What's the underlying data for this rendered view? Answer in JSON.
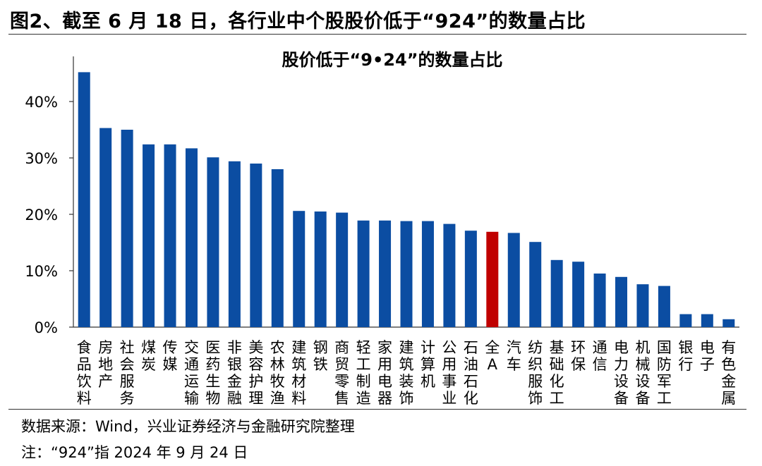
{
  "figure": {
    "title": "图2、截至 6 月 18 日，各行业中个股股价低于“924”的数量占比",
    "source": "数据来源：Wind，兴业证券经济与金融研究院整理",
    "note": "注：“924”指 2024 年 9 月 24 日"
  },
  "chart_data": {
    "type": "bar",
    "title": "股价低于“9•24”的数量占比",
    "xlabel": "",
    "ylabel": "",
    "ylim": [
      0,
      0.48
    ],
    "yticks": [
      0,
      0.1,
      0.2,
      0.3,
      0.4
    ],
    "ytick_labels": [
      "0%",
      "10%",
      "20%",
      "30%",
      "40%"
    ],
    "grid": false,
    "legend": "none",
    "bar_color": "#0B4DA2",
    "highlight_color": "#C00000",
    "highlight_category": "全A",
    "categories": [
      "食品饮料",
      "房地产",
      "社会服务",
      "煤炭",
      "传媒",
      "交通运输",
      "医药生物",
      "非银金融",
      "美容护理",
      "农林牧渔",
      "建筑材料",
      "钢铁",
      "商贸零售",
      "轻工制造",
      "家用电器",
      "建筑装饰",
      "计算机",
      "公用事业",
      "石油石化",
      "全A",
      "汽车",
      "纺织服饰",
      "基础化工",
      "环保",
      "通信",
      "电力设备",
      "机械设备",
      "国防军工",
      "银行",
      "电子",
      "有色金属"
    ],
    "values": [
      0.452,
      0.353,
      0.35,
      0.324,
      0.324,
      0.317,
      0.301,
      0.294,
      0.29,
      0.28,
      0.206,
      0.205,
      0.203,
      0.189,
      0.189,
      0.188,
      0.188,
      0.183,
      0.171,
      0.169,
      0.167,
      0.151,
      0.119,
      0.116,
      0.095,
      0.089,
      0.076,
      0.073,
      0.023,
      0.023,
      0.014
    ]
  }
}
